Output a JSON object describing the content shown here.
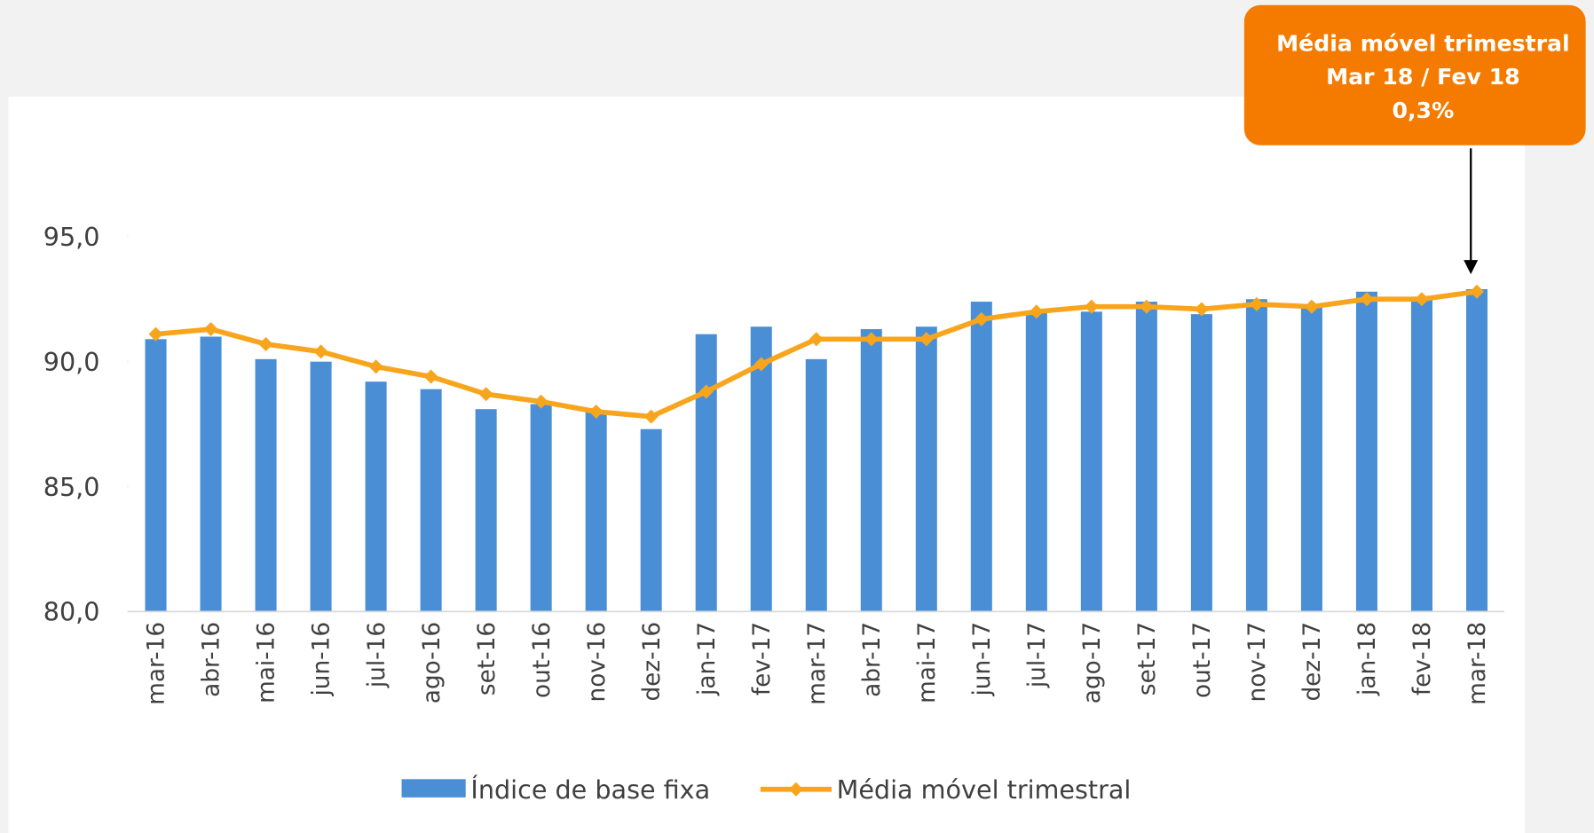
{
  "chart_data": {
    "type": "bar_line",
    "categories": [
      "mar-16",
      "abr-16",
      "mai-16",
      "jun-16",
      "jul-16",
      "ago-16",
      "set-16",
      "out-16",
      "nov-16",
      "dez-16",
      "jan-17",
      "fev-17",
      "mar-17",
      "abr-17",
      "mai-17",
      "jun-17",
      "jul-17",
      "ago-17",
      "set-17",
      "out-17",
      "nov-17",
      "dez-17",
      "jan-18",
      "fev-18",
      "mar-18"
    ],
    "series": [
      {
        "name": "Índice de base fixa",
        "type": "bar",
        "color": "#4a8fd6",
        "values": [
          90.9,
          91.0,
          90.1,
          90.0,
          89.2,
          88.9,
          88.1,
          88.3,
          88.0,
          87.3,
          91.1,
          91.4,
          90.1,
          91.3,
          91.4,
          92.4,
          92.0,
          92.0,
          92.4,
          91.9,
          92.5,
          92.2,
          92.8,
          92.6,
          92.9
        ]
      },
      {
        "name": "Média móvel trimestral",
        "type": "line",
        "color": "#f8a51e",
        "values": [
          91.1,
          91.3,
          90.7,
          90.4,
          89.8,
          89.4,
          88.7,
          88.4,
          88.0,
          87.8,
          88.8,
          89.9,
          90.9,
          90.9,
          90.9,
          91.7,
          92.0,
          92.2,
          92.2,
          92.1,
          92.3,
          92.2,
          92.5,
          92.5,
          92.8
        ]
      }
    ],
    "ylim": [
      80,
      100
    ],
    "yticks": [
      {
        "value": 80,
        "label": "80,0"
      },
      {
        "value": 85,
        "label": "85,0"
      },
      {
        "value": 90,
        "label": "90,0"
      },
      {
        "value": 95,
        "label": "95,0"
      }
    ],
    "annotation": {
      "lines": [
        "Média móvel trimestral",
        "Mar 18 / Fev 18",
        "0,3%"
      ],
      "color": "#f47b00"
    },
    "legend": "bottom"
  }
}
